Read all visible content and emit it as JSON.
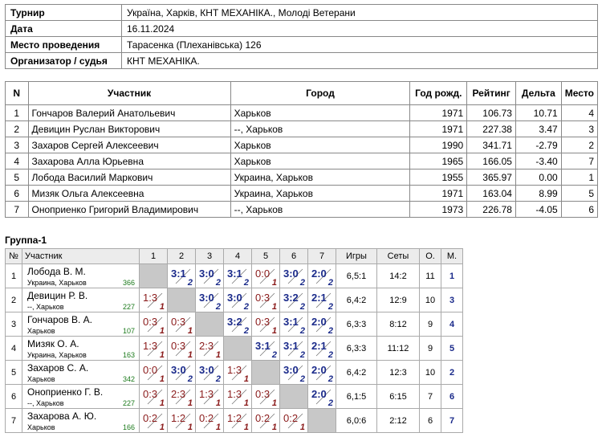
{
  "info": [
    {
      "key": "Турнир",
      "value": "Україна, Харків, КНТ МЕХАНІКА., Молоді Ветерани"
    },
    {
      "key": "Дата",
      "value": "16.11.2024"
    },
    {
      "key": "Место проведения",
      "value": "Тарасенка (Плеханівська) 126"
    },
    {
      "key": "Организатор / судья",
      "value": "КНТ МЕХАНІКА."
    }
  ],
  "results": {
    "headers": [
      "N",
      "Участник",
      "Город",
      "Год рожд.",
      "Рейтинг",
      "Дельта",
      "Место"
    ],
    "rows": [
      {
        "n": "1",
        "name": "Гончаров Валерий Анатольевич",
        "city": "Харьков",
        "year": "1971",
        "rating": "106.73",
        "delta": "10.71",
        "place": "4"
      },
      {
        "n": "2",
        "name": "Девицин Руслан Викторович",
        "city": "--, Харьков",
        "year": "1971",
        "rating": "227.38",
        "delta": "3.47",
        "place": "3"
      },
      {
        "n": "3",
        "name": "Захаров Сергей Алексеевич",
        "city": "Харьков",
        "year": "1990",
        "rating": "341.71",
        "delta": "-2.79",
        "place": "2"
      },
      {
        "n": "4",
        "name": "Захарова Алла Юрьевна",
        "city": "Харьков",
        "year": "1965",
        "rating": "166.05",
        "delta": "-3.40",
        "place": "7"
      },
      {
        "n": "5",
        "name": "Лобода Василий Маркович",
        "city": "Украина, Харьков",
        "year": "1955",
        "rating": "365.97",
        "delta": "0.00",
        "place": "1"
      },
      {
        "n": "6",
        "name": "Мизяк Ольга Алексеевна",
        "city": "Украина, Харьков",
        "year": "1971",
        "rating": "163.04",
        "delta": "8.99",
        "place": "5"
      },
      {
        "n": "7",
        "name": "Оноприенко Григорий Владимирович",
        "city": "--, Харьков",
        "year": "1973",
        "rating": "226.78",
        "delta": "-4.05",
        "place": "6"
      }
    ]
  },
  "group": {
    "title": "Группа-1",
    "headers": {
      "n": "№",
      "player": "Участник",
      "cols": [
        "1",
        "2",
        "3",
        "4",
        "5",
        "6",
        "7"
      ],
      "games": "Игры",
      "sets": "Сеты",
      "points": "О.",
      "place": "М."
    },
    "rows": [
      {
        "n": "1",
        "name": "Лобода В. М.",
        "city": "Украина, Харьков",
        "rating": "366",
        "games": "6,5:1",
        "sets": "14:2",
        "points": "11",
        "place": "1",
        "cells": [
          null,
          {
            "s": "3:1",
            "p": "2"
          },
          {
            "s": "3:0",
            "p": "2"
          },
          {
            "s": "3:1",
            "p": "2"
          },
          {
            "s": "0:0",
            "p": "1"
          },
          {
            "s": "3:0",
            "p": "2"
          },
          {
            "s": "2:0",
            "p": "2"
          }
        ]
      },
      {
        "n": "2",
        "name": "Девицин Р. В.",
        "city": "--, Харьков",
        "rating": "227",
        "games": "6,4:2",
        "sets": "12:9",
        "points": "10",
        "place": "3",
        "cells": [
          {
            "s": "1:3",
            "p": "1"
          },
          null,
          {
            "s": "3:0",
            "p": "2"
          },
          {
            "s": "3:0",
            "p": "2"
          },
          {
            "s": "0:3",
            "p": "1"
          },
          {
            "s": "3:2",
            "p": "2"
          },
          {
            "s": "2:1",
            "p": "2"
          }
        ]
      },
      {
        "n": "3",
        "name": "Гончаров В. А.",
        "city": "Харьков",
        "rating": "107",
        "games": "6,3:3",
        "sets": "8:12",
        "points": "9",
        "place": "4",
        "cells": [
          {
            "s": "0:3",
            "p": "1"
          },
          {
            "s": "0:3",
            "p": "1"
          },
          null,
          {
            "s": "3:2",
            "p": "2"
          },
          {
            "s": "0:3",
            "p": "1"
          },
          {
            "s": "3:1",
            "p": "2"
          },
          {
            "s": "2:0",
            "p": "2"
          }
        ]
      },
      {
        "n": "4",
        "name": "Мизяк О. А.",
        "city": "Украина, Харьков",
        "rating": "163",
        "games": "6,3:3",
        "sets": "11:12",
        "points": "9",
        "place": "5",
        "cells": [
          {
            "s": "1:3",
            "p": "1"
          },
          {
            "s": "0:3",
            "p": "1"
          },
          {
            "s": "2:3",
            "p": "1"
          },
          null,
          {
            "s": "3:1",
            "p": "2"
          },
          {
            "s": "3:1",
            "p": "2"
          },
          {
            "s": "2:1",
            "p": "2"
          }
        ]
      },
      {
        "n": "5",
        "name": "Захаров С. А.",
        "city": "Харьков",
        "rating": "342",
        "games": "6,4:2",
        "sets": "12:3",
        "points": "10",
        "place": "2",
        "cells": [
          {
            "s": "0:0",
            "p": "1"
          },
          {
            "s": "3:0",
            "p": "2"
          },
          {
            "s": "3:0",
            "p": "2"
          },
          {
            "s": "1:3",
            "p": "1"
          },
          null,
          {
            "s": "3:0",
            "p": "2"
          },
          {
            "s": "2:0",
            "p": "2"
          }
        ]
      },
      {
        "n": "6",
        "name": "Оноприенко Г. В.",
        "city": "--, Харьков",
        "rating": "227",
        "games": "6,1:5",
        "sets": "6:15",
        "points": "7",
        "place": "6",
        "cells": [
          {
            "s": "0:3",
            "p": "1"
          },
          {
            "s": "2:3",
            "p": "1"
          },
          {
            "s": "1:3",
            "p": "1"
          },
          {
            "s": "1:3",
            "p": "1"
          },
          {
            "s": "0:3",
            "p": "1"
          },
          null,
          {
            "s": "2:0",
            "p": "2"
          }
        ]
      },
      {
        "n": "7",
        "name": "Захарова А. Ю.",
        "city": "Харьков",
        "rating": "166",
        "games": "6,0:6",
        "sets": "2:12",
        "points": "6",
        "place": "7",
        "cells": [
          {
            "s": "0:2",
            "p": "1"
          },
          {
            "s": "1:2",
            "p": "1"
          },
          {
            "s": "0:2",
            "p": "1"
          },
          {
            "s": "1:2",
            "p": "1"
          },
          {
            "s": "0:2",
            "p": "1"
          },
          {
            "s": "0:2",
            "p": "1"
          },
          null
        ]
      }
    ]
  },
  "colors": {
    "win": "#1a2a8a",
    "loss": "#8a1a1a",
    "rating": "#1b7a1b",
    "self_cell": "#c8c8c8"
  }
}
